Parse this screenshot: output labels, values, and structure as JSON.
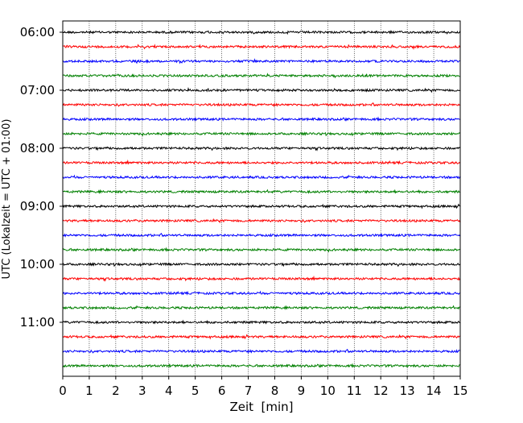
{
  "chart_data": {
    "type": "line",
    "title": "",
    "xlabel": "Zeit  [min]",
    "ylabel": "UTC (Lokalzeit = UTC + 01:00)",
    "xlim": [
      0,
      15
    ],
    "x_ticks": [
      "0",
      "1",
      "2",
      "3",
      "4",
      "5",
      "6",
      "7",
      "8",
      "9",
      "10",
      "11",
      "12",
      "13",
      "14",
      "15"
    ],
    "y_ticks": [
      "06:00",
      "07:00",
      "08:00",
      "09:00",
      "10:00",
      "11:00"
    ],
    "y_start": "06:00",
    "y_end": "11:45",
    "trace_interval_min": 15,
    "trace_count": 24,
    "trace_colors": [
      "#000000",
      "#ff0000",
      "#0000ff",
      "#008000"
    ],
    "x_grid": "dotted vertical lines at each minute",
    "y_grid": false,
    "legend": "none"
  }
}
